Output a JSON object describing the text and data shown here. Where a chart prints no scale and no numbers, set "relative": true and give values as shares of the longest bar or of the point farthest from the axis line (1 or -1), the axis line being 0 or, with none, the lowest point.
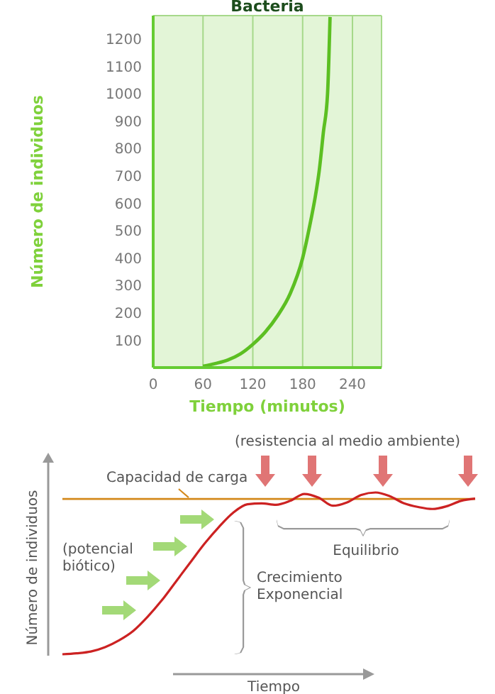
{
  "chart_data": [
    {
      "type": "line",
      "title": "Bacteria",
      "xlabel": "Tiempo (minutos)",
      "ylabel": "Número de individuos",
      "x": [
        60,
        75,
        90,
        105,
        120,
        135,
        150,
        165,
        180,
        190,
        195,
        200,
        205,
        210,
        213
      ],
      "series": [
        {
          "color": "#5cbf22",
          "values": [
            5,
            15,
            28,
            50,
            85,
            130,
            190,
            270,
            400,
            540,
            620,
            720,
            860,
            1000,
            1280
          ]
        }
      ],
      "xlim": [
        0,
        275
      ],
      "xticks": [
        0,
        60,
        120,
        180,
        240
      ],
      "ylim": [
        0,
        1285
      ],
      "yticks": [
        100,
        200,
        300,
        400,
        500,
        600,
        700,
        800,
        900,
        1000,
        1100,
        1200
      ],
      "grid": true
    },
    {
      "type": "line",
      "relative": true,
      "xlabel": "Tiempo",
      "ylabel": "Número de individuos",
      "categories": [
        null,
        null,
        null,
        null,
        null,
        null,
        null,
        null,
        null,
        null,
        null,
        null,
        null,
        null,
        null,
        null,
        null,
        null,
        null,
        null,
        null,
        null,
        null,
        null,
        null,
        null,
        null,
        null,
        null,
        null
      ],
      "series": [
        {
          "color": "#cc2222",
          "values": [
            0,
            0.006,
            0.017,
            0.044,
            0.087,
            0.146,
            0.233,
            0.335,
            0.452,
            0.569,
            0.685,
            0.787,
            0.875,
            0.927,
            0.933,
            0.924,
            0.948,
            0.991,
            0.968,
            0.918,
            0.939,
            0.985,
            1,
            0.977,
            0.933,
            0.91,
            0.898,
            0.915,
            0.948,
            0.962
          ]
        }
      ],
      "ref_lines": [
        {
          "axis": "y",
          "value": 0.96,
          "label": "Capacidad de carga",
          "color": "#d4891c"
        }
      ],
      "annotations": [
        "(resistencia al medio ambiente)",
        "(potencial biótico)",
        "Crecimiento Exponencial",
        "Equilibrio"
      ]
    }
  ]
}
